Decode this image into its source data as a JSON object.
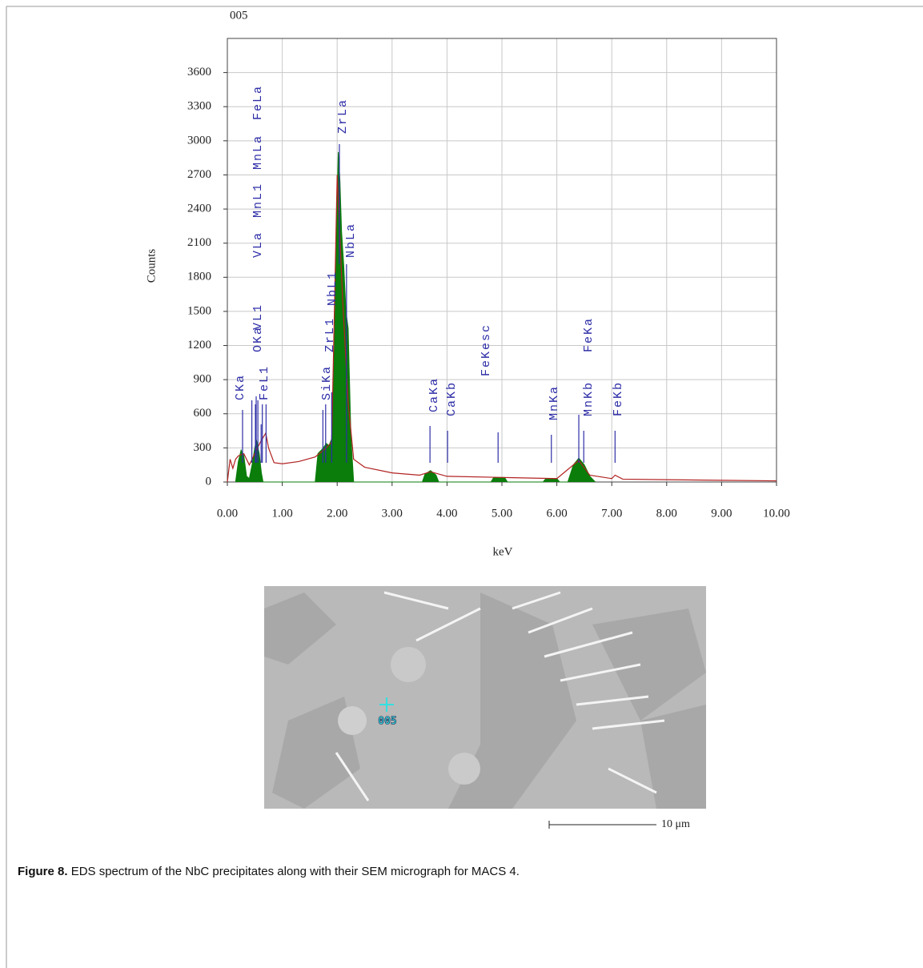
{
  "chart_data": {
    "type": "area",
    "title": "005",
    "xlabel": "keV",
    "ylabel": "Counts",
    "xlim": [
      0,
      10
    ],
    "ylim": [
      0,
      3900
    ],
    "xticks": [
      {
        "value": 0,
        "label": "0.00"
      },
      {
        "value": 1,
        "label": "1.00"
      },
      {
        "value": 2,
        "label": "2.00"
      },
      {
        "value": 3,
        "label": "3.00"
      },
      {
        "value": 4,
        "label": "4.00"
      },
      {
        "value": 5,
        "label": "5.00"
      },
      {
        "value": 6,
        "label": "6.00"
      },
      {
        "value": 7,
        "label": "7.00"
      },
      {
        "value": 8,
        "label": "8.00"
      },
      {
        "value": 9,
        "label": "9.00"
      },
      {
        "value": 10,
        "label": "10.00"
      }
    ],
    "yticks": [
      0,
      300,
      600,
      900,
      1200,
      1500,
      1800,
      2100,
      2400,
      2700,
      3000,
      3300,
      3600
    ],
    "grid": true,
    "series": [
      {
        "style": "area",
        "color": "#0a7d0a",
        "x": [
          0.15,
          0.2,
          0.25,
          0.3,
          0.35,
          0.4,
          0.45,
          0.5,
          0.53,
          0.58,
          0.62,
          0.65,
          1.6,
          1.65,
          1.75,
          1.8,
          1.85,
          1.9,
          1.95,
          2.0,
          2.02,
          2.05,
          2.08,
          2.12,
          2.16,
          2.2,
          2.25,
          2.3,
          3.55,
          3.6,
          3.7,
          3.8,
          3.85,
          4.8,
          4.85,
          5.05,
          5.1,
          5.75,
          5.8,
          6.0,
          6.05,
          6.2,
          6.3,
          6.4,
          6.5,
          6.6,
          6.7
        ],
        "values": [
          0,
          180,
          280,
          230,
          50,
          30,
          150,
          300,
          370,
          250,
          80,
          0,
          0,
          250,
          300,
          340,
          320,
          380,
          1200,
          2500,
          2900,
          2650,
          2200,
          1900,
          1500,
          1350,
          400,
          0,
          0,
          70,
          100,
          60,
          0,
          0,
          40,
          40,
          0,
          0,
          30,
          30,
          0,
          0,
          150,
          210,
          150,
          50,
          0
        ]
      },
      {
        "style": "line",
        "color": "#b22222",
        "x": [
          0,
          0.05,
          0.1,
          0.15,
          0.2,
          0.3,
          0.35,
          0.4,
          0.5,
          0.6,
          0.7,
          0.75,
          0.85,
          1.0,
          1.3,
          1.6,
          1.8,
          1.9,
          2.0,
          2.1,
          2.2,
          2.3,
          2.5,
          3.0,
          3.5,
          3.7,
          4.0,
          5.0,
          6.0,
          6.4,
          6.6,
          7.0,
          7.06,
          7.2,
          8.0,
          9.0,
          10.0
        ],
        "values": [
          0,
          200,
          120,
          200,
          230,
          250,
          200,
          150,
          250,
          350,
          430,
          300,
          170,
          160,
          180,
          220,
          300,
          350,
          2700,
          1600,
          700,
          200,
          130,
          80,
          60,
          90,
          50,
          40,
          30,
          190,
          60,
          30,
          60,
          25,
          20,
          15,
          10
        ]
      }
    ],
    "peaks": [
      {
        "label": "CKa",
        "x": 0.277
      },
      {
        "label": "FeL1",
        "x": 0.615
      },
      {
        "label": "OKa",
        "x": 0.525
      },
      {
        "label": "VL1",
        "x": 0.446
      },
      {
        "label": "VLa",
        "x": 0.511
      },
      {
        "label": "MnL1",
        "x": 0.556
      },
      {
        "label": "MnLa",
        "x": 0.637
      },
      {
        "label": "FeLa",
        "x": 0.705
      },
      {
        "label": "SiKa",
        "x": 1.74
      },
      {
        "label": "ZrL1",
        "x": 1.79
      },
      {
        "label": "NbL1",
        "x": 1.9
      },
      {
        "label": "ZrLa",
        "x": 2.04
      },
      {
        "label": "NbLa",
        "x": 2.17
      },
      {
        "label": "CaKa",
        "x": 3.69
      },
      {
        "label": "CaKb",
        "x": 4.01
      },
      {
        "label": "FeKesc",
        "x": 4.93
      },
      {
        "label": "MnKa",
        "x": 5.9
      },
      {
        "label": "MnKb",
        "x": 6.49
      },
      {
        "label": "FeKa",
        "x": 6.4
      },
      {
        "label": "FeKb",
        "x": 7.06
      }
    ]
  },
  "micrograph": {
    "marker_label": "005",
    "scale_bar": "10 μm"
  },
  "caption": {
    "label": "Figure 8.",
    "text": "EDS spectrum of the NbC precipitates along with their SEM micrograph for MACS 4."
  }
}
